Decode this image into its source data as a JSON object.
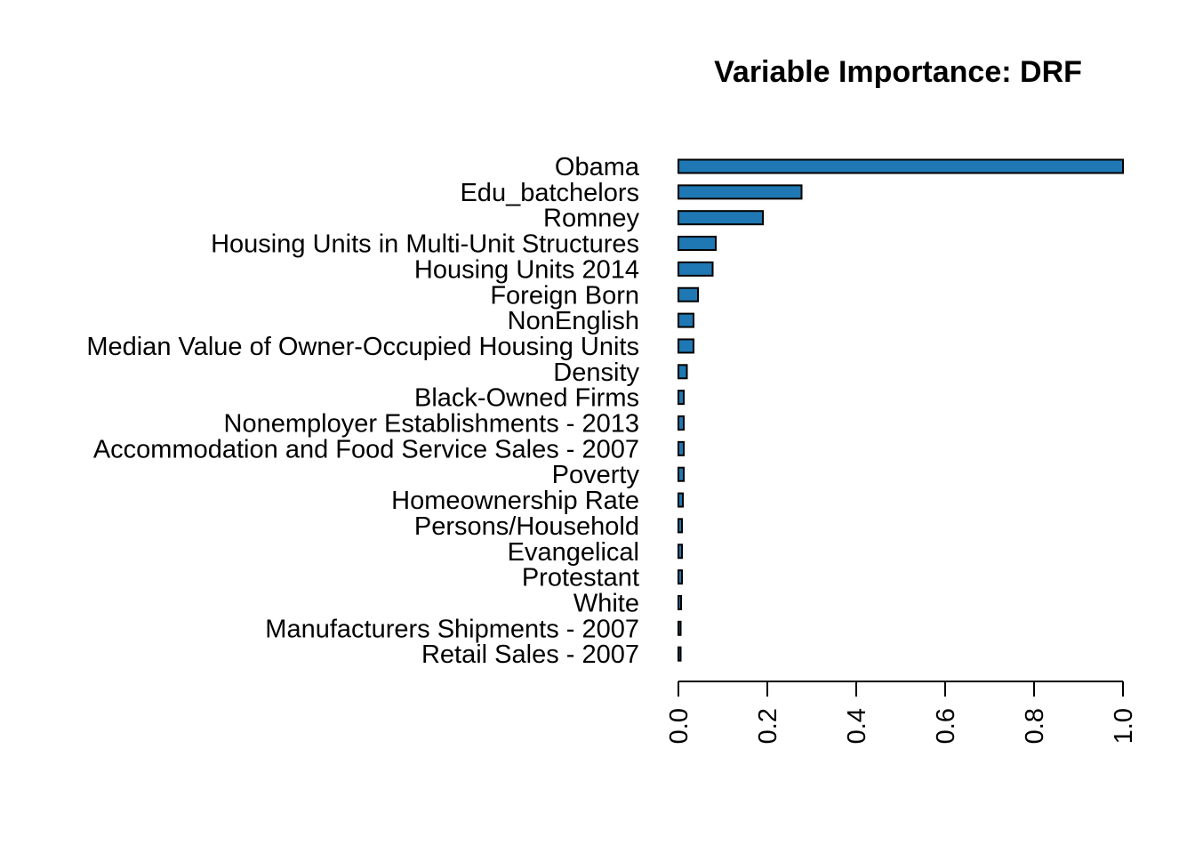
{
  "chart_data": {
    "type": "bar",
    "orientation": "horizontal",
    "title": "Variable Importance: DRF",
    "xlabel": "",
    "ylabel": "",
    "bar_color": "#1f78b4",
    "categories": [
      "Obama",
      "Edu_batchelors",
      "Romney",
      "Housing Units in Multi-Unit Structures",
      "Housing Units 2014",
      "Foreign Born",
      "NonEnglish",
      "Median Value of Owner-Occupied Housing Units",
      "Density",
      "Black-Owned Firms",
      "Nonemployer Establishments - 2013",
      "Accommodation and Food Service Sales - 2007",
      "Poverty",
      "Homeownership Rate",
      "Persons/Household",
      "Evangelical",
      "Protestant",
      "White",
      "Manufacturers Shipments - 2007",
      "Retail Sales - 2007"
    ],
    "values": [
      1.0,
      0.277,
      0.19,
      0.084,
      0.077,
      0.044,
      0.034,
      0.034,
      0.019,
      0.012,
      0.012,
      0.012,
      0.012,
      0.01,
      0.008,
      0.008,
      0.008,
      0.006,
      0.005,
      0.005
    ],
    "xlim": [
      0,
      1
    ],
    "xticks": [
      0.0,
      0.2,
      0.4,
      0.6,
      0.8,
      1.0
    ],
    "xtick_labels": [
      "0.0",
      "0.2",
      "0.4",
      "0.6",
      "0.8",
      "1.0"
    ],
    "grid": false,
    "legend": "none"
  }
}
